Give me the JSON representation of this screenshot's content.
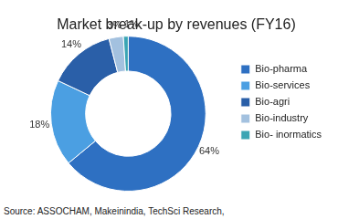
{
  "chart_data": {
    "type": "doughnut",
    "title": "Market break-up by revenues (FY16)",
    "source": "Source: ASSOCHAM, Makeinindia, TechSci Research,",
    "categories": [
      "Bio-pharma",
      "Bio-services",
      "Bio-agri",
      "Bio-industry",
      "Bio- inormatics"
    ],
    "values": [
      64,
      18,
      14,
      3,
      1
    ],
    "value_labels": [
      "64%",
      "18%",
      "14%",
      "3%",
      "1%"
    ],
    "colors": [
      "#2e70c2",
      "#4b9fe2",
      "#2a5fa8",
      "#a3c1df",
      "#3aa5b4"
    ],
    "legend": "right",
    "data_labels": true
  }
}
